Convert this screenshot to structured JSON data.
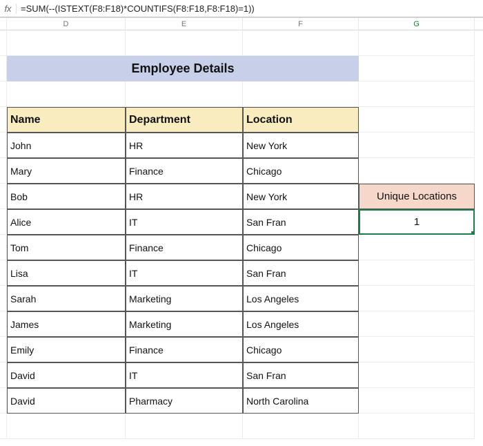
{
  "formula_bar": {
    "fx_label": "fx",
    "formula": "=SUM(--(ISTEXT(F8:F18)*COUNTIFS(F8:F18,F8:F18)=1))"
  },
  "columns": {
    "D": "D",
    "E": "E",
    "F": "F",
    "G": "G",
    "active": "G"
  },
  "title": "Employee Details",
  "table": {
    "headers": {
      "name": "Name",
      "department": "Department",
      "location": "Location"
    },
    "rows": [
      {
        "name": "John",
        "department": "HR",
        "location": "New York"
      },
      {
        "name": "Mary",
        "department": "Finance",
        "location": "Chicago"
      },
      {
        "name": "Bob",
        "department": "HR",
        "location": "New York"
      },
      {
        "name": "Alice",
        "department": "IT",
        "location": "San Fran"
      },
      {
        "name": "Tom",
        "department": "Finance",
        "location": "Chicago"
      },
      {
        "name": "Lisa",
        "department": "IT",
        "location": "San Fran"
      },
      {
        "name": "Sarah",
        "department": "Marketing",
        "location": "Los Angeles"
      },
      {
        "name": "James",
        "department": "Marketing",
        "location": "Los Angeles"
      },
      {
        "name": "Emily",
        "department": "Finance",
        "location": "Chicago"
      },
      {
        "name": "David",
        "department": "IT",
        "location": "San Fran"
      },
      {
        "name": "David",
        "department": "Pharmacy",
        "location": "North Carolina"
      }
    ]
  },
  "unique_box": {
    "label": "Unique Locations",
    "value": "1"
  },
  "colors": {
    "title_bg": "#c7d0e8",
    "header_bg": "#f9edbf",
    "unique_bg": "#f6d8ca",
    "selection_border": "#1a7f46",
    "grid_line": "#ececec",
    "table_border": "#555555"
  }
}
